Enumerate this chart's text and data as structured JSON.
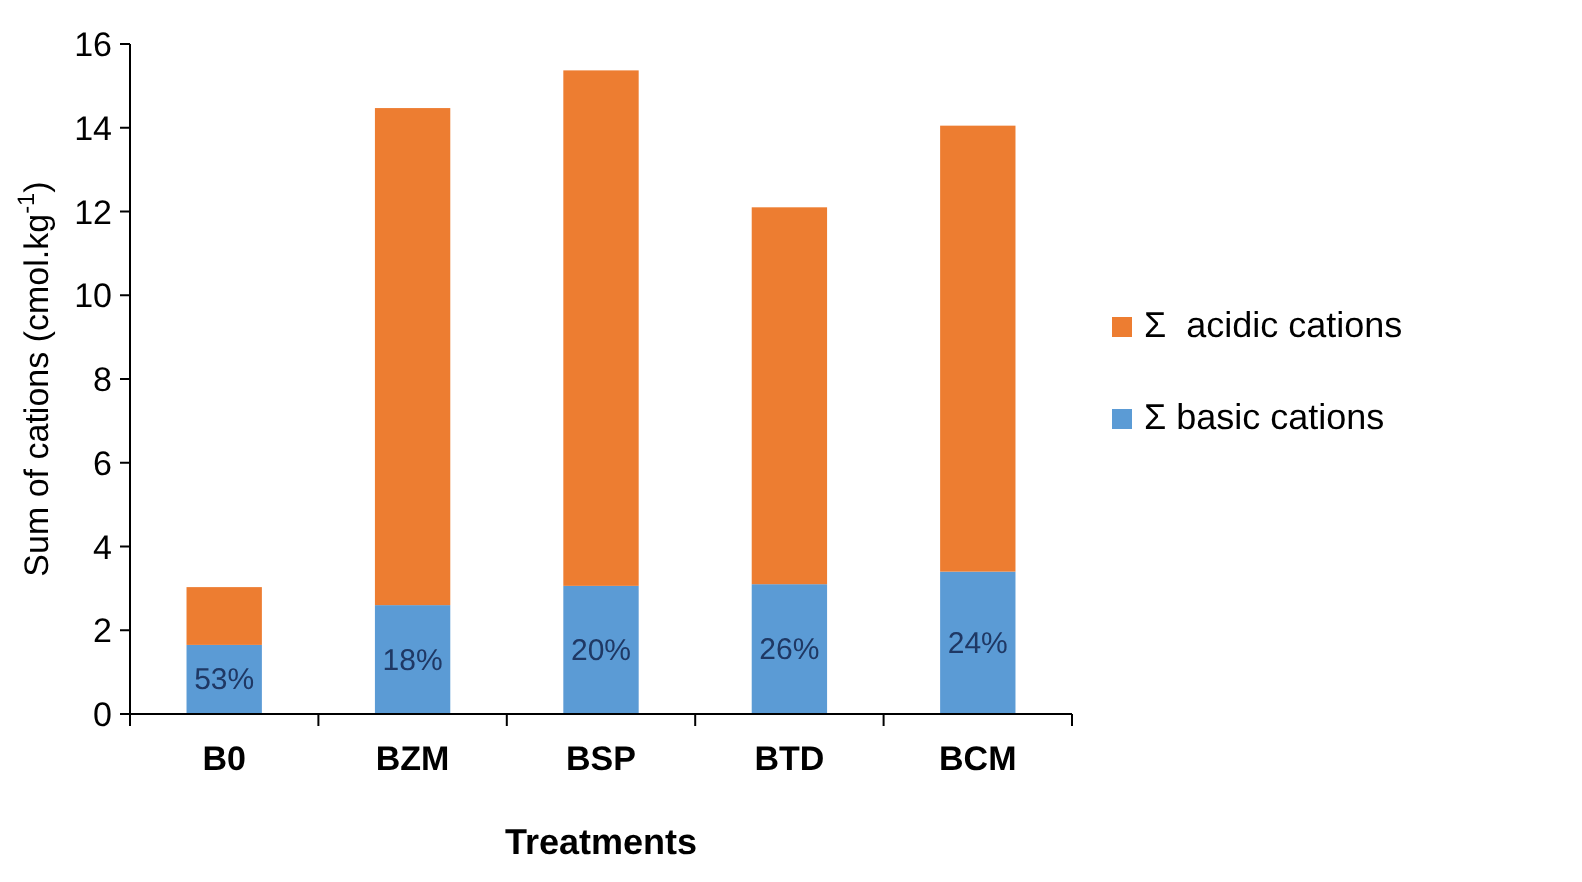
{
  "chart_data": {
    "type": "bar",
    "stacked": true,
    "xlabel": "Treatments",
    "ylabel": "Sum of cations (cmol.kg$^{-1}$)",
    "categories": [
      "B0",
      "BZM",
      "BSP",
      "BTD",
      "BCM"
    ],
    "series": [
      {
        "name": "Σ basic cations",
        "color": "#5b9bd5",
        "values": [
          1.65,
          2.6,
          3.06,
          3.1,
          3.4
        ]
      },
      {
        "name": "Σ  acidic cations",
        "color": "#ed7d31",
        "values": [
          1.38,
          11.87,
          12.31,
          9.0,
          10.65
        ]
      }
    ],
    "annotations": [
      {
        "text": "53%",
        "x": "B0",
        "y": 1.65
      },
      {
        "text": "18%",
        "x": "BZM",
        "y": 2.6
      },
      {
        "text": "20%",
        "x": "BSP",
        "y": 3.06
      },
      {
        "text": "26%",
        "x": "BTD",
        "y": 3.1
      },
      {
        "text": "24%",
        "x": "BCM",
        "y": 3.4
      }
    ],
    "ylim": [
      0,
      16
    ],
    "yticks": [
      0,
      2,
      4,
      6,
      8,
      10,
      12,
      14,
      16
    ],
    "grid": false,
    "legend": "right"
  }
}
